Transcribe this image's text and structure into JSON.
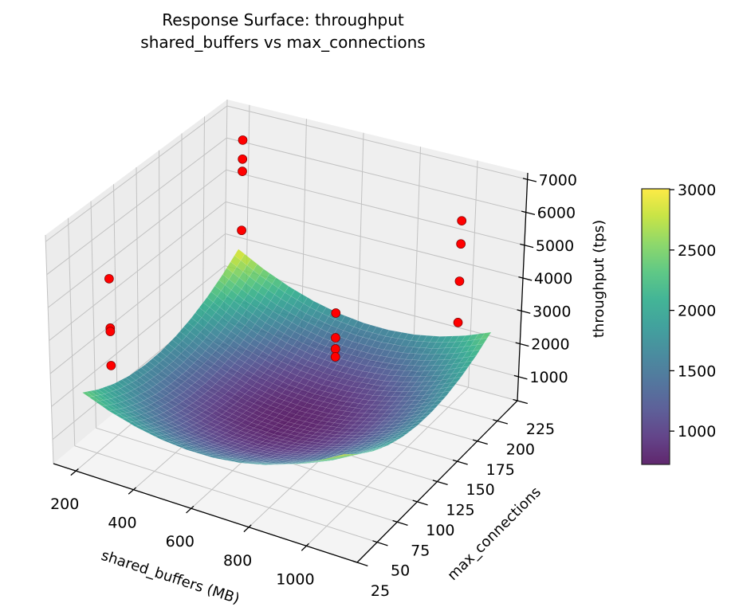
{
  "chart_data": {
    "type": "surface",
    "title_lines": [
      "Response Surface: throughput",
      "shared_buffers vs max_connections"
    ],
    "xlabel": "shared_buffers (MB)",
    "ylabel": "max_connections",
    "zlabel": "throughput (tps)",
    "xlim": [
      122,
      1176
    ],
    "ylim": [
      25,
      225
    ],
    "zlim": [
      270,
      7200
    ],
    "xticks": [
      "200",
      "400",
      "600",
      "800",
      "1000"
    ],
    "yticks": [
      "25",
      "50",
      "75",
      "100",
      "125",
      "150",
      "175",
      "200",
      "225"
    ],
    "zticks": [
      "1000",
      "2000",
      "3000",
      "4000",
      "5000",
      "6000",
      "7000"
    ],
    "grid": true,
    "colormap": "viridis",
    "surface_alpha": 0.85,
    "surface": {
      "x": [
        200,
        290,
        380,
        470,
        560,
        650,
        740,
        830,
        920,
        1010,
        1100
      ],
      "y": [
        35,
        53,
        71,
        89,
        107,
        125,
        143,
        161,
        179,
        197,
        215
      ],
      "z": [
        [
          2420,
          2110,
          1880,
          1730,
          1660,
          1670,
          1760,
          1930,
          2180,
          2510,
          2920
        ],
        [
          2128,
          1808,
          1568,
          1408,
          1328,
          1328,
          1408,
          1568,
          1808,
          2128,
          2528
        ],
        [
          1912,
          1582,
          1332,
          1162,
          1072,
          1062,
          1132,
          1282,
          1512,
          1822,
          2212
        ],
        [
          1772,
          1432,
          1172,
          992,
          892,
          872,
          932,
          1072,
          1292,
          1592,
          1972
        ],
        [
          1708,
          1358,
          1088,
          898,
          788,
          758,
          808,
          938,
          1148,
          1438,
          1808
        ],
        [
          1720,
          1360,
          1080,
          880,
          760,
          720,
          760,
          880,
          1080,
          1360,
          1720
        ],
        [
          1808,
          1438,
          1148,
          938,
          808,
          758,
          788,
          898,
          1088,
          1358,
          1708
        ],
        [
          1972,
          1592,
          1292,
          1072,
          932,
          872,
          892,
          992,
          1172,
          1432,
          1772
        ],
        [
          2212,
          1822,
          1512,
          1282,
          1132,
          1062,
          1072,
          1162,
          1332,
          1582,
          1912
        ],
        [
          2528,
          2128,
          1808,
          1568,
          1408,
          1328,
          1328,
          1408,
          1568,
          1808,
          2128
        ],
        [
          2920,
          2510,
          2180,
          1930,
          1760,
          1670,
          1660,
          1730,
          1880,
          2110,
          2420
        ]
      ]
    },
    "scatter": {
      "color": "#ff0000",
      "points": [
        {
          "x": 256,
          "y": 50,
          "z": 5680
        },
        {
          "x": 256,
          "y": 50,
          "z": 4190
        },
        {
          "x": 256,
          "y": 50,
          "z": 4090
        },
        {
          "x": 256,
          "y": 50,
          "z": 3060
        },
        {
          "x": 256,
          "y": 200,
          "z": 6760
        },
        {
          "x": 256,
          "y": 200,
          "z": 6170
        },
        {
          "x": 256,
          "y": 200,
          "z": 5790
        },
        {
          "x": 256,
          "y": 200,
          "z": 3960
        },
        {
          "x": 1024,
          "y": 50,
          "z": 6460
        },
        {
          "x": 1024,
          "y": 50,
          "z": 5750
        },
        {
          "x": 1024,
          "y": 50,
          "z": 5430
        },
        {
          "x": 1024,
          "y": 50,
          "z": 5200
        },
        {
          "x": 1024,
          "y": 200,
          "z": 5970
        },
        {
          "x": 1024,
          "y": 200,
          "z": 5270
        },
        {
          "x": 1024,
          "y": 200,
          "z": 4140
        },
        {
          "x": 1024,
          "y": 200,
          "z": 2890
        }
      ]
    },
    "colorbar": {
      "range": [
        724,
        3007
      ],
      "ticks": [
        "1000",
        "1500",
        "2000",
        "2500",
        "3000"
      ]
    }
  }
}
